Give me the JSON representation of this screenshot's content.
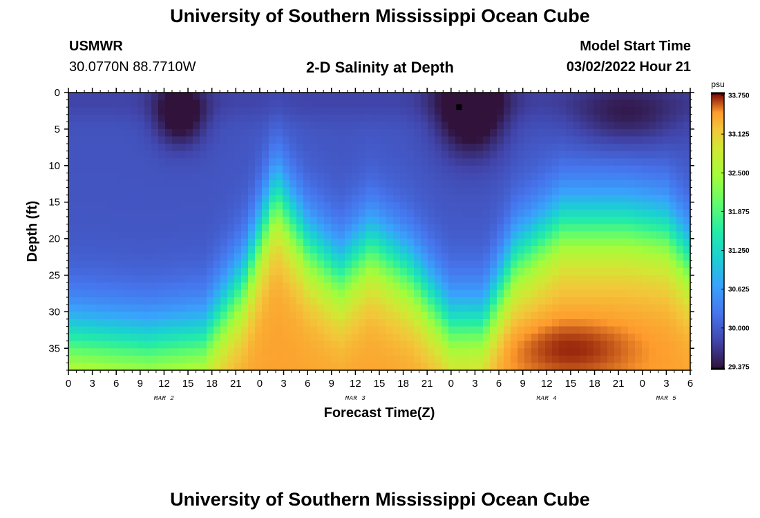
{
  "page": {
    "title": "University of Southern Mississippi Ocean Cube",
    "title_bottom": "University of Southern Mississippi Ocean Cube",
    "station_id": "USMWR",
    "station_coords": "30.0770N  88.7710W",
    "plot_title": "2-D Salinity at Depth",
    "model_label": "Model Start Time",
    "model_time": "03/02/2022 Hour 21"
  },
  "chart_data": {
    "type": "heatmap",
    "title": "2-D Salinity at Depth",
    "xlabel": "Forecast Time(Z)",
    "ylabel": "Depth (ft)",
    "x_ticks": [
      "0",
      "3",
      "6",
      "9",
      "12",
      "15",
      "18",
      "21",
      "0",
      "3",
      "6",
      "9",
      "12",
      "15",
      "18",
      "21",
      "0",
      "3",
      "6",
      "9",
      "12",
      "15",
      "18",
      "21",
      "0",
      "3",
      "6"
    ],
    "x_range_hours": [
      0,
      78
    ],
    "date_labels": [
      {
        "label": "MAR 2",
        "hour": 12
      },
      {
        "label": "MAR 3",
        "hour": 36
      },
      {
        "label": "MAR 4",
        "hour": 60
      },
      {
        "label": "MAR 5",
        "hour": 75
      }
    ],
    "y_ticks": [
      0,
      5,
      10,
      15,
      20,
      25,
      30,
      35
    ],
    "y_range": [
      0,
      38
    ],
    "colorbar": {
      "unit": "psu",
      "min": 29.375,
      "max": 33.75,
      "tick_labels": [
        "33.750",
        "33.125",
        "32.500",
        "31.875",
        "31.250",
        "30.625",
        "30.000",
        "29.375"
      ]
    },
    "marker": {
      "hour": 49,
      "depth_ft": 2
    },
    "grid_cells": {
      "nx": 90,
      "ny": 38
    }
  }
}
